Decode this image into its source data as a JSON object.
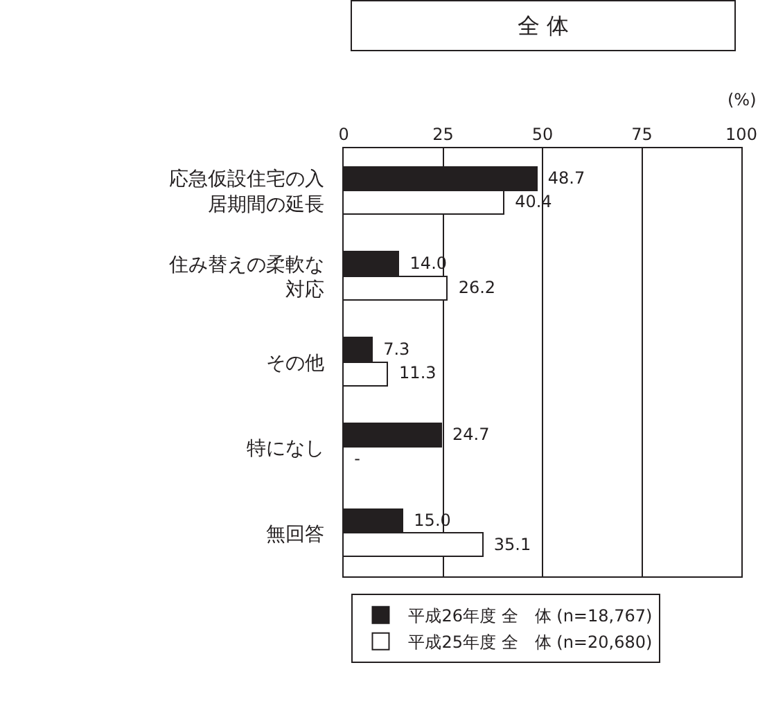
{
  "chart_data": {
    "type": "bar",
    "orientation": "horizontal",
    "title": "全 体",
    "xlabel": "(%)",
    "categories": [
      "応急仮設住宅の入居期間の延長",
      "住み替えの柔軟な対応",
      "その他",
      "特になし",
      "無回答"
    ],
    "series": [
      {
        "name": "平成26年度 全　体 (n=18,767)",
        "color": "#231f20",
        "values": [
          48.7,
          14.0,
          7.3,
          24.7,
          15.0
        ],
        "value_labels": [
          "48.7",
          "14.0",
          "7.3",
          "24.7",
          "15.0"
        ]
      },
      {
        "name": "平成25年度 全　体 (n=20,680)",
        "color": "#ffffff",
        "values": [
          40.4,
          26.2,
          11.3,
          null,
          35.1
        ],
        "value_labels": [
          "40.4",
          "26.2",
          "11.3",
          "-",
          "35.1"
        ]
      }
    ],
    "xlim": [
      0,
      100
    ],
    "xticks": [
      0,
      25,
      50,
      75,
      100
    ],
    "grid": "x",
    "legend": "bottom"
  }
}
